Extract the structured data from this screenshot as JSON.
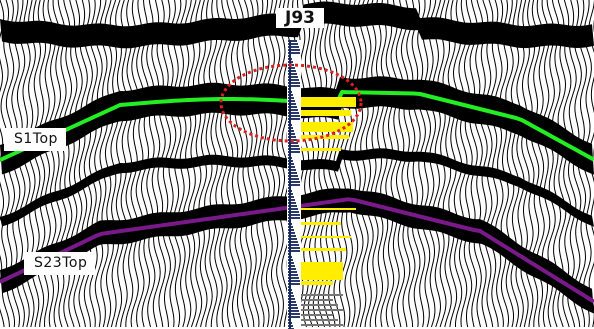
{
  "well": {
    "name": "J93"
  },
  "horizons": [
    {
      "name": "S1Top",
      "color": "#22ee22"
    },
    {
      "name": "S23Top",
      "color": "#7a1a8a"
    }
  ],
  "colors": {
    "trace": "#000000",
    "background": "#ffffff",
    "well_log": "#2a3a6a",
    "pay_zone": "#ffee00",
    "highlight_ellipse": "#e02020"
  },
  "annotation": {
    "shape": "dashed-ellipse",
    "color": "#e02020"
  }
}
